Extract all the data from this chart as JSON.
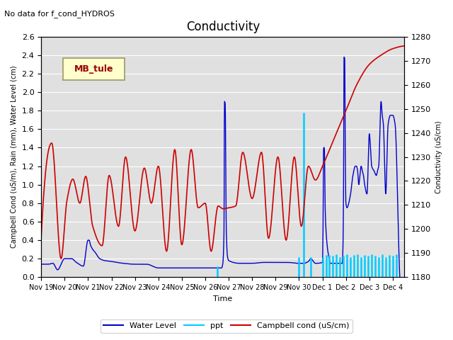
{
  "title": "Conductivity",
  "no_data_text": "No data for f_cond_HYDROS",
  "ylabel_left": "Campbell Cond (uS/m), Rain (mm), Water Level (cm)",
  "ylabel_right": "Conductivity (uS/cm)",
  "xlabel": "Time",
  "ylim_left": [
    0.0,
    2.6
  ],
  "ylim_right": [
    1180,
    1280
  ],
  "background_color": "#e0e0e0",
  "legend_box_label": "MB_tule",
  "legend_box_color": "#ffffcc",
  "legend_box_edge": "#999966",
  "legend_box_text_color": "#990000",
  "x_tick_labels": [
    "Nov 19",
    "Nov 20",
    "Nov 21",
    "Nov 22",
    "Nov 23",
    "Nov 24",
    "Nov 25",
    "Nov 26",
    "Nov 27",
    "Nov 28",
    "Nov 29",
    "Nov 30",
    "Dec 1",
    "Dec 2",
    "Dec 3",
    "Dec 4"
  ],
  "water_level_color": "#0000cc",
  "ppt_color": "#00ccff",
  "campbell_color": "#cc0000",
  "title_fontsize": 12,
  "label_fontsize": 7,
  "tick_fontsize": 8
}
